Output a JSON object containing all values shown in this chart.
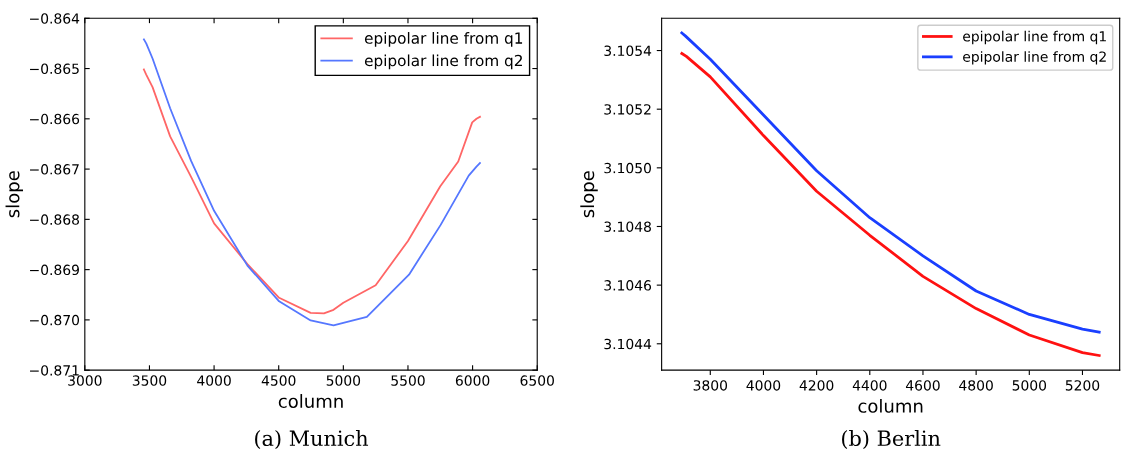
{
  "chart_data": [
    {
      "type": "line",
      "title": "(a) Munich",
      "xlabel": "column",
      "ylabel": "slope",
      "xlim": [
        3000,
        6500
      ],
      "xticks": [
        3000,
        3500,
        4000,
        4500,
        5000,
        5500,
        6000,
        6500
      ],
      "ylim": [
        -0.871,
        -0.864
      ],
      "yticks": [
        {
          "value": -0.871,
          "label": "−0.871"
        },
        {
          "value": -0.87,
          "label": "−0.870"
        },
        {
          "value": -0.869,
          "label": "−0.869"
        },
        {
          "value": -0.868,
          "label": "−0.868"
        },
        {
          "value": -0.867,
          "label": "−0.867"
        },
        {
          "value": -0.866,
          "label": "−0.866"
        },
        {
          "value": -0.865,
          "label": "−0.865"
        },
        {
          "value": -0.864,
          "label": "−0.864"
        }
      ],
      "legend": "top right",
      "grid": false,
      "series": [
        {
          "name": "epipolar line from q1",
          "color": "#ff6666",
          "x": [
            3457,
            3475,
            3524,
            3660,
            3823,
            4000,
            4258,
            4503,
            4747,
            4850,
            4924,
            5000,
            5250,
            5500,
            5750,
            5889,
            5997,
            6030,
            6057
          ],
          "values": [
            -0.86502,
            -0.86512,
            -0.86537,
            -0.86635,
            -0.86716,
            -0.86808,
            -0.86889,
            -0.86956,
            -0.86986,
            -0.86987,
            -0.8698,
            -0.86966,
            -0.86931,
            -0.86843,
            -0.86734,
            -0.86685,
            -0.86607,
            -0.866,
            -0.86596
          ]
        },
        {
          "name": "epipolar line from q2",
          "color": "#5577ff",
          "x": [
            3457,
            3475,
            3524,
            3660,
            3823,
            4000,
            4258,
            4503,
            4747,
            4924,
            5182,
            5508,
            5753,
            5970,
            6030,
            6057
          ],
          "values": [
            -0.86442,
            -0.8645,
            -0.8648,
            -0.86579,
            -0.86684,
            -0.86783,
            -0.86892,
            -0.86963,
            -0.87001,
            -0.87011,
            -0.86994,
            -0.8691,
            -0.86811,
            -0.86713,
            -0.86695,
            -0.86688
          ]
        }
      ]
    },
    {
      "type": "line",
      "title": "(b) Berlin",
      "xlabel": "column",
      "ylabel": "slope",
      "xlim": [
        3617,
        5340
      ],
      "xticks": [
        3800,
        4000,
        4200,
        4400,
        4600,
        4800,
        5000,
        5200
      ],
      "ylim": [
        3.10431,
        3.10551
      ],
      "yticks": [
        {
          "value": 3.1044,
          "label": "3.1044"
        },
        {
          "value": 3.1046,
          "label": "3.1046"
        },
        {
          "value": 3.1048,
          "label": "3.1048"
        },
        {
          "value": 3.105,
          "label": "3.1050"
        },
        {
          "value": 3.1052,
          "label": "3.1052"
        },
        {
          "value": 3.1054,
          "label": "3.1054"
        }
      ],
      "legend": "top right",
      "grid": false,
      "series": [
        {
          "name": "epipolar line from q1",
          "color": "#ff1111",
          "x": [
            3693,
            3710,
            3800,
            4000,
            4200,
            4400,
            4600,
            4800,
            5000,
            5200,
            5263
          ],
          "values": [
            3.10539,
            3.10538,
            3.10531,
            3.10511,
            3.10492,
            3.10477,
            3.10463,
            3.10452,
            3.10443,
            3.10437,
            3.10436
          ]
        },
        {
          "name": "epipolar line from q2",
          "color": "#1a3fff",
          "x": [
            3693,
            3706,
            3800,
            4000,
            4200,
            4400,
            4600,
            4800,
            5000,
            5200,
            5263
          ],
          "values": [
            3.10546,
            3.10545,
            3.10537,
            3.10518,
            3.10499,
            3.10483,
            3.1047,
            3.10458,
            3.1045,
            3.10445,
            3.10444
          ]
        }
      ]
    }
  ]
}
